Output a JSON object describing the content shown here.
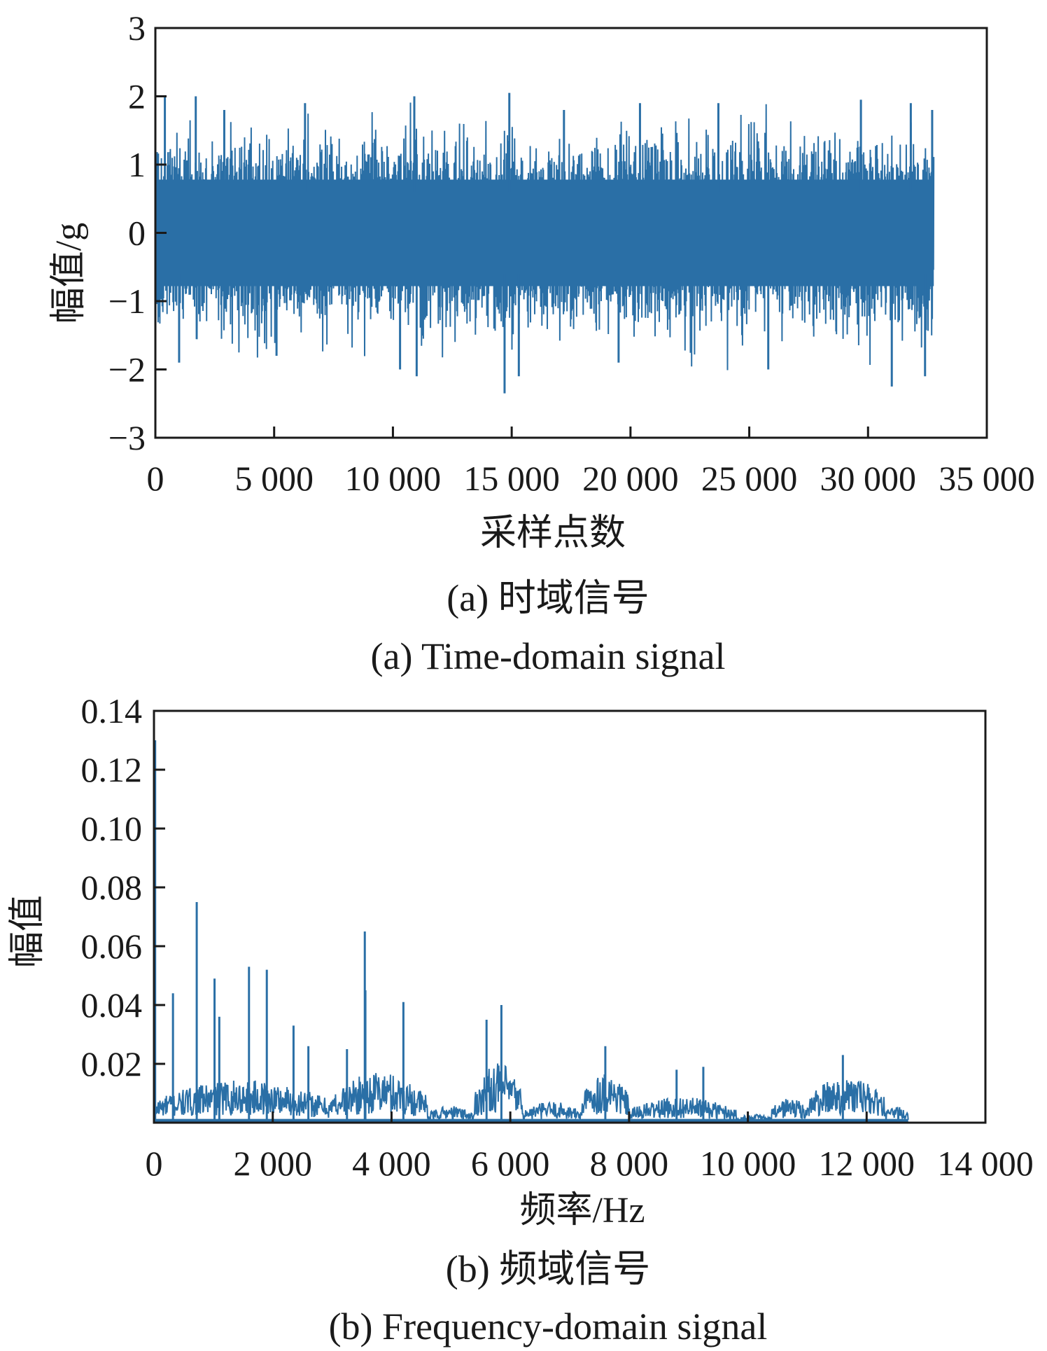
{
  "figure": {
    "colors": {
      "series": "#2a6fa6",
      "axis": "#1a1a1a",
      "background": "#ffffff"
    }
  },
  "chart_data": [
    {
      "type": "line",
      "panel": "a",
      "caption_cn": "(a) 时域信号",
      "caption_en": "(a) Time-domain signal",
      "xlabel": "采样点数",
      "ylabel": "幅值/g",
      "xlim": [
        0,
        35000
      ],
      "ylim": [
        -3,
        3
      ],
      "xticks": [
        0,
        5000,
        10000,
        15000,
        20000,
        25000,
        30000,
        35000
      ],
      "xtick_labels": [
        "0",
        "5 000",
        "10 000",
        "15 000",
        "20 000",
        "25 000",
        "30 000",
        "35 000"
      ],
      "yticks": [
        -3,
        -2,
        -1,
        0,
        1,
        2,
        3
      ],
      "ytick_labels": [
        "−3",
        "−2",
        "−1",
        "0",
        "1",
        "2",
        "3"
      ],
      "grid": false,
      "signal": {
        "x_start": 0,
        "x_end": 32768,
        "typical_envelope": [
          -1.3,
          1.4
        ],
        "peaks": [
          {
            "x": 400,
            "y": 2.0
          },
          {
            "x": 1700,
            "y": 2.0
          },
          {
            "x": 2900,
            "y": 1.8
          },
          {
            "x": 6300,
            "y": 1.9
          },
          {
            "x": 10900,
            "y": 2.0
          },
          {
            "x": 14900,
            "y": 2.05
          },
          {
            "x": 17200,
            "y": 1.8
          },
          {
            "x": 20400,
            "y": 1.9
          },
          {
            "x": 23700,
            "y": 1.9
          },
          {
            "x": 29700,
            "y": 1.95
          },
          {
            "x": 31800,
            "y": 1.9
          },
          {
            "x": 32700,
            "y": 1.8
          }
        ],
        "troughs": [
          {
            "x": 1000,
            "y": -1.9
          },
          {
            "x": 5100,
            "y": -1.8
          },
          {
            "x": 10300,
            "y": -2.0
          },
          {
            "x": 11000,
            "y": -2.1
          },
          {
            "x": 14700,
            "y": -2.35
          },
          {
            "x": 15300,
            "y": -2.1
          },
          {
            "x": 19500,
            "y": -1.9
          },
          {
            "x": 25800,
            "y": -2.0
          },
          {
            "x": 31000,
            "y": -2.25
          },
          {
            "x": 32400,
            "y": -2.1
          }
        ]
      }
    },
    {
      "type": "line",
      "panel": "b",
      "caption_cn": "(b) 频域信号",
      "caption_en": "(b) Frequency-domain signal",
      "xlabel": "频率/Hz",
      "ylabel": "幅值",
      "xlim": [
        0,
        14000
      ],
      "ylim": [
        0,
        0.14
      ],
      "xticks": [
        0,
        2000,
        4000,
        6000,
        8000,
        10000,
        12000,
        14000
      ],
      "xtick_labels": [
        "0",
        "2 000",
        "4 000",
        "6 000",
        "8 000",
        "10 000",
        "12 000",
        "14 000"
      ],
      "yticks": [
        0.02,
        0.04,
        0.06,
        0.08,
        0.1,
        0.12,
        0.14
      ],
      "ytick_labels": [
        "0.02",
        "0.04",
        "0.06",
        "0.08",
        "0.10",
        "0.12",
        "0.14"
      ],
      "grid": false,
      "spectrum": {
        "x_end": 12700,
        "peaks": [
          {
            "x": 20,
            "y": 0.13
          },
          {
            "x": 320,
            "y": 0.044
          },
          {
            "x": 720,
            "y": 0.075
          },
          {
            "x": 1020,
            "y": 0.049
          },
          {
            "x": 1100,
            "y": 0.036
          },
          {
            "x": 1600,
            "y": 0.053
          },
          {
            "x": 1900,
            "y": 0.052
          },
          {
            "x": 2350,
            "y": 0.033
          },
          {
            "x": 2600,
            "y": 0.026
          },
          {
            "x": 3250,
            "y": 0.025
          },
          {
            "x": 3550,
            "y": 0.065
          },
          {
            "x": 3560,
            "y": 0.045
          },
          {
            "x": 4200,
            "y": 0.041
          },
          {
            "x": 5600,
            "y": 0.035
          },
          {
            "x": 5850,
            "y": 0.04
          },
          {
            "x": 7600,
            "y": 0.026
          },
          {
            "x": 8800,
            "y": 0.018
          },
          {
            "x": 9250,
            "y": 0.019
          },
          {
            "x": 11600,
            "y": 0.023
          }
        ],
        "humps": [
          {
            "x0": 0,
            "x1": 3000,
            "level": 0.01
          },
          {
            "x0": 3000,
            "x1": 4600,
            "level": 0.012
          },
          {
            "x0": 4600,
            "x1": 5400,
            "level": 0.004
          },
          {
            "x0": 5400,
            "x1": 6200,
            "level": 0.014
          },
          {
            "x0": 6200,
            "x1": 7200,
            "level": 0.005
          },
          {
            "x0": 7200,
            "x1": 8000,
            "level": 0.012
          },
          {
            "x0": 8000,
            "x1": 9800,
            "level": 0.006
          },
          {
            "x0": 9800,
            "x1": 10400,
            "level": 0.002
          },
          {
            "x0": 10400,
            "x1": 11000,
            "level": 0.006
          },
          {
            "x0": 11000,
            "x1": 12300,
            "level": 0.011
          },
          {
            "x0": 12300,
            "x1": 12700,
            "level": 0.004
          }
        ]
      }
    }
  ]
}
